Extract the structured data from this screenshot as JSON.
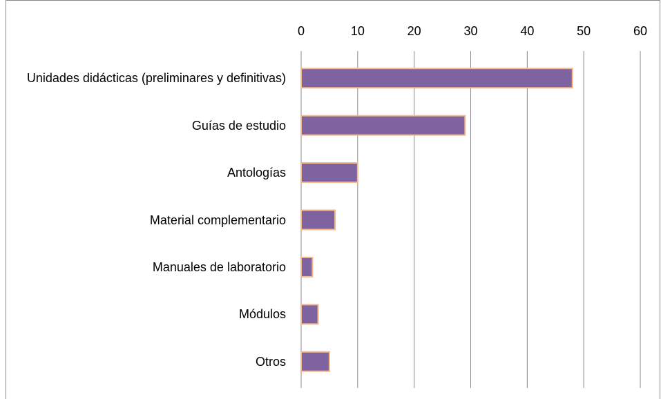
{
  "chart_data": {
    "type": "bar",
    "orientation": "horizontal",
    "categories": [
      "Unidades didácticas (preliminares y definitivas)",
      "Guías de estudio",
      "Antologías",
      "Material complementario",
      "Manuales de laboratorio",
      "Módulos",
      "Otros"
    ],
    "values": [
      48,
      29,
      10,
      6,
      2,
      3,
      5
    ],
    "color": "#7f62a0",
    "edge_color": "#f5b98a",
    "xlim": [
      0,
      60
    ],
    "xticks": [
      0,
      10,
      20,
      30,
      40,
      50,
      60
    ],
    "grid": true
  }
}
